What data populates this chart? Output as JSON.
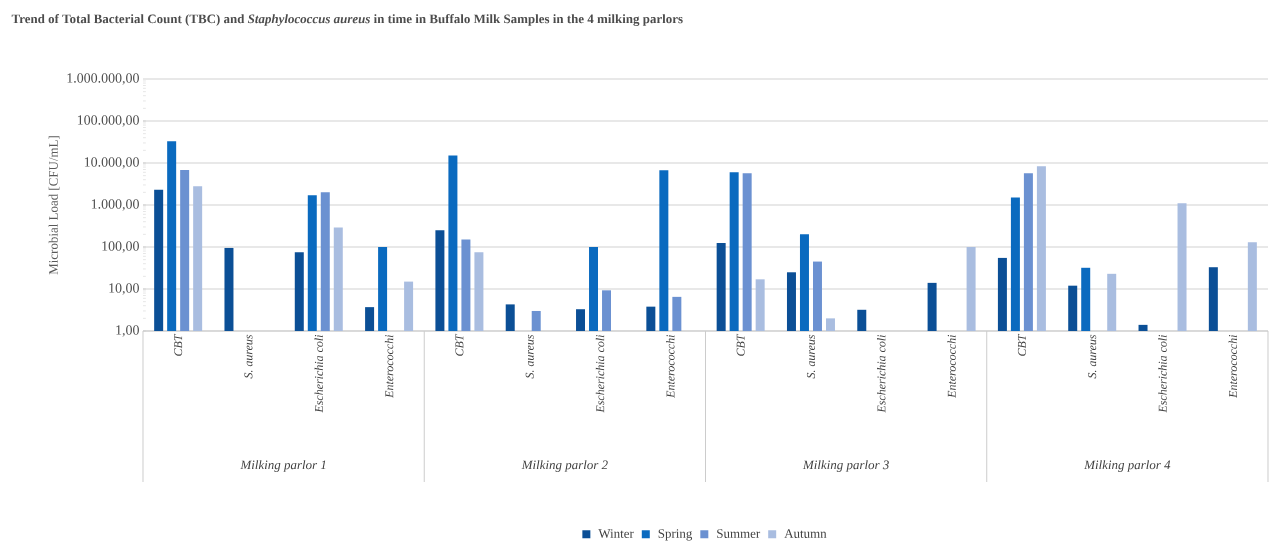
{
  "chart_data": {
    "type": "bar",
    "title": "Trend of Total Bacterial Count (TBC) and *Staphylococcus aureus* in time in Buffalo Milk Samples in the 4 milking parlors",
    "ylabel": "Microbial Load [CFU/mL]",
    "categories": [
      "CBT",
      "S. aureus",
      "Escherichia coli",
      "Enterococchi",
      "CBT",
      "S. aureus",
      "Escherichia coli",
      "Enterococchi",
      "CBT",
      "S. aureus",
      "Escherichia coli",
      "Enterococchi",
      "CBT",
      "S. aureus",
      "Escherichia coli",
      "Enterococchi"
    ],
    "annotations": [
      "Milking parlor 1",
      "Milking parlor 2",
      "Milking parlor 3",
      "Milking parlor 4"
    ],
    "series": [
      {
        "name": "Winter",
        "color": "#0b4f96",
        "values": [
          2300,
          95,
          75,
          3.7,
          250,
          4.3,
          3.3,
          3.8,
          125,
          25,
          3.2,
          14,
          55,
          12,
          1.4,
          33
        ]
      },
      {
        "name": "Spring",
        "color": "#0a6abf",
        "values": [
          33000,
          null,
          1700,
          100,
          15000,
          null,
          100,
          6700,
          6000,
          200,
          null,
          null,
          1500,
          32,
          null,
          null
        ]
      },
      {
        "name": "Summer",
        "color": "#6b91d1",
        "values": [
          6800,
          null,
          2000,
          null,
          150,
          3,
          9.3,
          6.5,
          5700,
          45,
          null,
          null,
          5700,
          null,
          null,
          null
        ]
      },
      {
        "name": "Autumn",
        "color": "#a9bde0",
        "values": [
          2800,
          null,
          290,
          15,
          75,
          null,
          null,
          null,
          17,
          2,
          null,
          100,
          8400,
          23,
          1100,
          130
        ]
      }
    ],
    "log": true,
    "ylim": [
      1,
      1000000
    ],
    "yticks": [
      {
        "value": 1,
        "label": "1,00"
      },
      {
        "value": 10,
        "label": "10,00"
      },
      {
        "value": 100,
        "label": "100,00"
      },
      {
        "value": 1000,
        "label": "1.000,00"
      },
      {
        "value": 10000,
        "label": "10.000,00"
      },
      {
        "value": 100000,
        "label": "100.000,00"
      },
      {
        "value": 1000000,
        "label": "1.000.000,00"
      }
    ],
    "grid": "y",
    "legend": "bottom"
  }
}
